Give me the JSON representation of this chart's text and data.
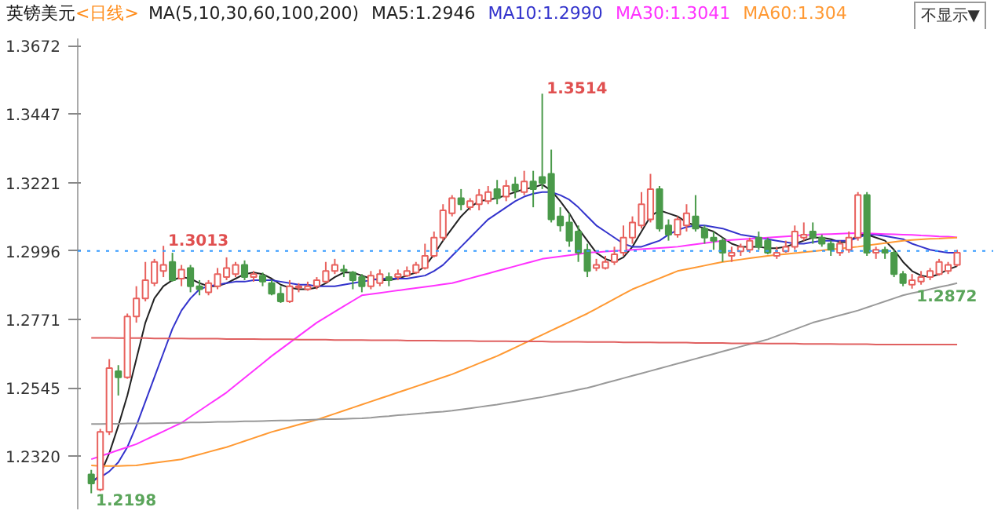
{
  "chart_data": {
    "type": "candlestick",
    "title": "英镑美元",
    "subtitle": "<日线>",
    "categories": [
      null,
      null,
      null,
      null,
      null,
      null,
      null,
      null,
      null,
      null,
      null,
      null,
      null,
      null,
      null,
      null,
      null,
      null,
      null,
      null,
      null,
      null,
      null,
      null,
      null,
      null,
      null,
      null,
      null,
      null,
      null,
      null,
      null,
      null,
      null,
      null,
      null,
      null,
      null,
      null,
      null,
      null,
      null,
      null,
      null,
      null,
      null,
      null,
      null,
      null,
      null,
      null,
      null,
      null,
      null,
      null,
      null,
      null,
      null,
      null,
      null,
      null,
      null,
      null,
      null,
      null,
      null,
      null,
      null,
      null,
      null,
      null,
      null,
      null,
      null,
      null,
      null,
      null,
      null,
      null,
      null,
      null,
      null,
      null,
      null,
      null,
      null,
      null,
      null,
      null,
      null,
      null,
      null,
      null,
      null,
      null,
      null
    ],
    "ohlc": [
      [
        1.226,
        1.2275,
        1.2198,
        1.223
      ],
      [
        1.221,
        1.241,
        1.2205,
        1.24
      ],
      [
        1.24,
        1.264,
        1.239,
        1.261
      ],
      [
        1.26,
        1.262,
        1.252,
        1.258
      ],
      [
        1.258,
        1.279,
        1.2575,
        1.278
      ],
      [
        1.278,
        1.288,
        1.276,
        1.284
      ],
      [
        1.284,
        1.296,
        1.283,
        1.29
      ],
      [
        1.289,
        1.297,
        1.288,
        1.296
      ],
      [
        1.293,
        1.3013,
        1.291,
        1.295
      ],
      [
        1.296,
        1.299,
        1.2895,
        1.29
      ],
      [
        1.2905,
        1.295,
        1.288,
        1.2935
      ],
      [
        1.294,
        1.295,
        1.286,
        1.288
      ],
      [
        1.288,
        1.29,
        1.285,
        1.287
      ],
      [
        1.286,
        1.29,
        1.285,
        1.289
      ],
      [
        1.288,
        1.294,
        1.287,
        1.292
      ],
      [
        1.291,
        1.2975,
        1.29,
        1.294
      ],
      [
        1.292,
        1.296,
        1.291,
        1.295
      ],
      [
        1.295,
        1.2965,
        1.29,
        1.291
      ],
      [
        1.291,
        1.293,
        1.2895,
        1.292
      ],
      [
        1.2915,
        1.2925,
        1.288,
        1.2895
      ],
      [
        1.289,
        1.29,
        1.285,
        1.2855
      ],
      [
        1.2855,
        1.288,
        1.2825,
        1.283
      ],
      [
        1.283,
        1.29,
        1.2825,
        1.288
      ],
      [
        1.2875,
        1.289,
        1.286,
        1.288
      ],
      [
        1.287,
        1.2895,
        1.2865,
        1.288
      ],
      [
        1.288,
        1.291,
        1.287,
        1.29
      ],
      [
        1.2895,
        1.296,
        1.289,
        1.293
      ],
      [
        1.293,
        1.297,
        1.292,
        1.295
      ],
      [
        1.2935,
        1.295,
        1.291,
        1.293
      ],
      [
        1.2925,
        1.293,
        1.287,
        1.29
      ],
      [
        1.291,
        1.292,
        1.286,
        1.288
      ],
      [
        1.288,
        1.293,
        1.287,
        1.2915
      ],
      [
        1.289,
        1.2935,
        1.288,
        1.292
      ],
      [
        1.291,
        1.2925,
        1.288,
        1.29
      ],
      [
        1.291,
        1.2935,
        1.29,
        1.292
      ],
      [
        1.2915,
        1.2945,
        1.291,
        1.293
      ],
      [
        1.2925,
        1.296,
        1.292,
        1.295
      ],
      [
        1.294,
        1.302,
        1.2935,
        1.298
      ],
      [
        1.298,
        1.306,
        1.2975,
        1.304
      ],
      [
        1.304,
        1.315,
        1.303,
        1.313
      ],
      [
        1.312,
        1.318,
        1.311,
        1.317
      ],
      [
        1.317,
        1.32,
        1.313,
        1.315
      ],
      [
        1.314,
        1.317,
        1.313,
        1.316
      ],
      [
        1.315,
        1.32,
        1.313,
        1.318
      ],
      [
        1.316,
        1.321,
        1.315,
        1.319
      ],
      [
        1.32,
        1.323,
        1.315,
        1.317
      ],
      [
        1.3175,
        1.323,
        1.316,
        1.321
      ],
      [
        1.3215,
        1.324,
        1.317,
        1.3195
      ],
      [
        1.319,
        1.326,
        1.318,
        1.3225
      ],
      [
        1.3225,
        1.326,
        1.314,
        1.32
      ],
      [
        1.324,
        1.3514,
        1.32,
        1.322
      ],
      [
        1.325,
        1.333,
        1.309,
        1.31
      ],
      [
        1.311,
        1.314,
        1.306,
        1.308
      ],
      [
        1.309,
        1.312,
        1.301,
        1.303
      ],
      [
        1.306,
        1.308,
        1.296,
        1.299
      ],
      [
        1.3,
        1.302,
        1.291,
        1.293
      ],
      [
        1.294,
        1.297,
        1.293,
        1.295
      ],
      [
        1.294,
        1.298,
        1.2935,
        1.296
      ],
      [
        1.296,
        1.301,
        1.295,
        1.2985
      ],
      [
        1.299,
        1.308,
        1.298,
        1.304
      ],
      [
        1.304,
        1.311,
        1.302,
        1.309
      ],
      [
        1.308,
        1.319,
        1.307,
        1.315
      ],
      [
        1.31,
        1.325,
        1.309,
        1.32
      ],
      [
        1.32,
        1.321,
        1.306,
        1.307
      ],
      [
        1.308,
        1.31,
        1.303,
        1.305
      ],
      [
        1.305,
        1.311,
        1.304,
        1.31
      ],
      [
        1.308,
        1.315,
        1.306,
        1.312
      ],
      [
        1.311,
        1.318,
        1.306,
        1.307
      ],
      [
        1.307,
        1.308,
        1.302,
        1.304
      ],
      [
        1.304,
        1.306,
        1.3,
        1.303
      ],
      [
        1.303,
        1.304,
        1.296,
        1.299
      ],
      [
        1.298,
        1.301,
        1.296,
        1.299
      ],
      [
        1.2995,
        1.302,
        1.298,
        1.301
      ],
      [
        1.3,
        1.304,
        1.299,
        1.303
      ],
      [
        1.304,
        1.306,
        1.3,
        1.301
      ],
      [
        1.303,
        1.304,
        1.2985,
        1.299
      ],
      [
        1.298,
        1.301,
        1.297,
        1.299
      ],
      [
        1.2995,
        1.303,
        1.299,
        1.301
      ],
      [
        1.301,
        1.308,
        1.3,
        1.306
      ],
      [
        1.304,
        1.309,
        1.303,
        1.305
      ],
      [
        1.306,
        1.309,
        1.302,
        1.304
      ],
      [
        1.304,
        1.305,
        1.301,
        1.302
      ],
      [
        1.302,
        1.303,
        1.298,
        1.3
      ],
      [
        1.299,
        1.303,
        1.298,
        1.302
      ],
      [
        1.3,
        1.306,
        1.299,
        1.304
      ],
      [
        1.304,
        1.319,
        1.303,
        1.318
      ],
      [
        1.318,
        1.319,
        1.298,
        1.299
      ],
      [
        1.299,
        1.301,
        1.297,
        1.3
      ],
      [
        1.3,
        1.301,
        1.297,
        1.299
      ],
      [
        1.299,
        1.3,
        1.291,
        1.292
      ],
      [
        1.292,
        1.293,
        1.288,
        1.289
      ],
      [
        1.2885,
        1.292,
        1.2872,
        1.29
      ],
      [
        1.2895,
        1.293,
        1.2885,
        1.291
      ],
      [
        1.291,
        1.294,
        1.29,
        1.293
      ],
      [
        1.292,
        1.297,
        1.2915,
        1.296
      ],
      [
        1.293,
        1.296,
        1.292,
        1.295
      ],
      [
        1.295,
        1.3,
        1.2945,
        1.299
      ]
    ],
    "colors": [
      "#4a9a4a",
      "#e8615d",
      "#e8615d",
      "#4a9a4a",
      "#e8615d",
      "#e8615d",
      "#e8615d",
      "#e8615d",
      "#e8615d",
      "#4a9a4a",
      "#e8615d",
      "#4a9a4a",
      "#4a9a4a",
      "#e8615d",
      "#e8615d",
      "#e8615d",
      "#e8615d",
      "#4a9a4a",
      "#e8615d",
      "#4a9a4a",
      "#4a9a4a",
      "#4a9a4a",
      "#e8615d",
      "#e8615d",
      "#e8615d",
      "#e8615d",
      "#e8615d",
      "#e8615d",
      "#4a9a4a",
      "#4a9a4a",
      "#4a9a4a",
      "#e8615d",
      "#e8615d",
      "#4a9a4a",
      "#e8615d",
      "#e8615d",
      "#e8615d",
      "#e8615d",
      "#e8615d",
      "#e8615d",
      "#e8615d",
      "#4a9a4a",
      "#e8615d",
      "#e8615d",
      "#e8615d",
      "#4a9a4a",
      "#e8615d",
      "#4a9a4a",
      "#e8615d",
      "#4a9a4a",
      "#4a9a4a",
      "#4a9a4a",
      "#4a9a4a",
      "#4a9a4a",
      "#4a9a4a",
      "#4a9a4a",
      "#e8615d",
      "#e8615d",
      "#e8615d",
      "#e8615d",
      "#e8615d",
      "#e8615d",
      "#e8615d",
      "#4a9a4a",
      "#4a9a4a",
      "#e8615d",
      "#e8615d",
      "#4a9a4a",
      "#4a9a4a",
      "#4a9a4a",
      "#4a9a4a",
      "#e8615d",
      "#e8615d",
      "#e8615d",
      "#4a9a4a",
      "#4a9a4a",
      "#e8615d",
      "#e8615d",
      "#e8615d",
      "#e8615d",
      "#4a9a4a",
      "#4a9a4a",
      "#4a9a4a",
      "#e8615d",
      "#e8615d",
      "#e8615d",
      "#4a9a4a",
      "#e8615d",
      "#4a9a4a",
      "#4a9a4a",
      "#4a9a4a",
      "#e8615d",
      "#e8615d",
      "#e8615d",
      "#e8615d",
      "#e8615d",
      "#e8615d"
    ],
    "series": [
      {
        "name": "MA5:1.2946",
        "type": "line",
        "color": "#222222",
        "values": [
          1.223,
          1.226,
          1.233,
          1.242,
          1.252,
          1.264,
          1.276,
          1.284,
          1.288,
          1.29,
          1.291,
          1.2905,
          1.289,
          1.288,
          1.288,
          1.289,
          1.2905,
          1.292,
          1.2925,
          1.292,
          1.2905,
          1.2885,
          1.2875,
          1.287,
          1.287,
          1.2875,
          1.289,
          1.291,
          1.2925,
          1.2925,
          1.2915,
          1.2905,
          1.29,
          1.29,
          1.2905,
          1.2915,
          1.2925,
          1.2945,
          1.2985,
          1.303,
          1.307,
          1.311,
          1.314,
          1.316,
          1.3165,
          1.317,
          1.318,
          1.319,
          1.32,
          1.3205,
          1.3215,
          1.3195,
          1.316,
          1.312,
          1.307,
          1.303,
          1.299,
          1.297,
          1.296,
          1.2975,
          1.301,
          1.306,
          1.311,
          1.313,
          1.312,
          1.311,
          1.309,
          1.308,
          1.307,
          1.306,
          1.304,
          1.302,
          1.301,
          1.301,
          1.301,
          1.3005,
          1.3005,
          1.301,
          1.302,
          1.303,
          1.304,
          1.304,
          1.3035,
          1.3025,
          1.3025,
          1.305,
          1.305,
          1.304,
          1.303,
          1.3,
          1.296,
          1.293,
          1.2915,
          1.291,
          1.292,
          1.2935,
          1.2946
        ]
      },
      {
        "name": "MA10:1.2990",
        "type": "line",
        "color": "#3333cc",
        "values": [
          1.224,
          1.225,
          1.227,
          1.23,
          1.235,
          1.242,
          1.25,
          1.258,
          1.266,
          1.274,
          1.28,
          1.284,
          1.287,
          1.288,
          1.2885,
          1.289,
          1.2895,
          1.2895,
          1.29,
          1.29,
          1.29,
          1.2895,
          1.289,
          1.2885,
          1.2885,
          1.288,
          1.288,
          1.288,
          1.2885,
          1.289,
          1.2895,
          1.29,
          1.2905,
          1.2905,
          1.2905,
          1.2905,
          1.291,
          1.2915,
          1.293,
          1.295,
          1.298,
          1.301,
          1.304,
          1.307,
          1.31,
          1.312,
          1.314,
          1.316,
          1.3175,
          1.3185,
          1.319,
          1.319,
          1.318,
          1.3165,
          1.314,
          1.311,
          1.308,
          1.306,
          1.304,
          1.302,
          1.301,
          1.301,
          1.302,
          1.303,
          1.305,
          1.3065,
          1.3075,
          1.308,
          1.308,
          1.3075,
          1.307,
          1.306,
          1.305,
          1.3045,
          1.304,
          1.3035,
          1.303,
          1.3025,
          1.302,
          1.302,
          1.3025,
          1.303,
          1.303,
          1.303,
          1.303,
          1.304,
          1.305,
          1.305,
          1.3045,
          1.304,
          1.3035,
          1.302,
          1.301,
          1.3,
          1.2995,
          1.299,
          1.299
        ]
      },
      {
        "name": "MA30:1.3041",
        "type": "line",
        "color": "#ff33ff",
        "values": [
          1.231,
          1.232,
          1.233,
          1.234,
          1.235,
          1.236,
          1.2374,
          1.2388,
          1.2402,
          1.2416,
          1.243,
          1.245,
          1.247,
          1.249,
          1.251,
          1.253,
          1.2554,
          1.2578,
          1.2602,
          1.2626,
          1.265,
          1.2672,
          1.2694,
          1.2716,
          1.2738,
          1.276,
          1.2778,
          1.2796,
          1.2814,
          1.2832,
          1.285,
          1.2854,
          1.2858,
          1.2862,
          1.2866,
          1.287,
          1.2874,
          1.2878,
          1.2882,
          1.2886,
          1.289,
          1.2898,
          1.2906,
          1.2914,
          1.2922,
          1.293,
          1.2938,
          1.2946,
          1.2954,
          1.2962,
          1.297,
          1.2974,
          1.2978,
          1.2982,
          1.2986,
          1.299,
          1.2992,
          1.2994,
          1.2996,
          1.2998,
          1.3,
          1.3002,
          1.3004,
          1.3006,
          1.3008,
          1.301,
          1.3014,
          1.3018,
          1.3022,
          1.3026,
          1.303,
          1.3032,
          1.3034,
          1.3036,
          1.3038,
          1.304,
          1.3042,
          1.3044,
          1.3046,
          1.3048,
          1.305,
          1.3051,
          1.3052,
          1.3053,
          1.3054,
          1.3055,
          1.3054,
          1.3053,
          1.3052,
          1.3051,
          1.305,
          1.3049,
          1.3047,
          1.3046,
          1.3044,
          1.3043,
          1.3041
        ]
      },
      {
        "name": "MA60:1.304",
        "type": "line",
        "color": "#ff9933",
        "values": [
          1.229,
          1.2288,
          1.2288,
          1.2288,
          1.2289,
          1.229,
          1.2294,
          1.2298,
          1.2302,
          1.2306,
          1.231,
          1.2318,
          1.2326,
          1.2334,
          1.2342,
          1.235,
          1.236,
          1.237,
          1.238,
          1.239,
          1.24,
          1.2408,
          1.2416,
          1.2424,
          1.2432,
          1.244,
          1.245,
          1.246,
          1.247,
          1.248,
          1.249,
          1.25,
          1.251,
          1.252,
          1.253,
          1.254,
          1.255,
          1.256,
          1.257,
          1.258,
          1.259,
          1.2602,
          1.2614,
          1.2626,
          1.2638,
          1.265,
          1.2664,
          1.2678,
          1.2692,
          1.2706,
          1.272,
          1.2734,
          1.2748,
          1.2762,
          1.2776,
          1.279,
          1.2806,
          1.2822,
          1.2838,
          1.2854,
          1.287,
          1.2882,
          1.2894,
          1.2906,
          1.2918,
          1.293,
          1.2936,
          1.2942,
          1.2948,
          1.2954,
          1.296,
          1.2964,
          1.2968,
          1.2972,
          1.2976,
          1.298,
          1.2983,
          1.2986,
          1.2989,
          1.2992,
          1.2995,
          1.2998,
          1.3001,
          1.3004,
          1.3007,
          1.301,
          1.3014,
          1.3018,
          1.3022,
          1.3026,
          1.303,
          1.3032,
          1.3034,
          1.3036,
          1.3037,
          1.3039,
          1.304
        ]
      },
      {
        "type": "line",
        "color": "#999999",
        "values": [
          1.2426,
          1.2426,
          1.2427,
          1.2427,
          1.2428,
          1.2428,
          1.2428,
          1.2429,
          1.2429,
          1.243,
          1.243,
          1.2431,
          1.2431,
          1.2432,
          1.2433,
          1.2433,
          1.2434,
          1.2435,
          1.2435,
          1.2436,
          1.2437,
          1.2438,
          1.2438,
          1.2439,
          1.244,
          1.2441,
          1.2442,
          1.2442,
          1.2443,
          1.2444,
          1.2445,
          1.2447,
          1.245,
          1.2452,
          1.2455,
          1.2457,
          1.246,
          1.2462,
          1.2465,
          1.2467,
          1.247,
          1.2474,
          1.2478,
          1.2482,
          1.2486,
          1.249,
          1.2495,
          1.25,
          1.2505,
          1.251,
          1.2515,
          1.2521,
          1.2527,
          1.2533,
          1.2539,
          1.2545,
          1.2553,
          1.2561,
          1.2569,
          1.2577,
          1.2585,
          1.2593,
          1.2601,
          1.2609,
          1.2617,
          1.2625,
          1.2633,
          1.2641,
          1.2649,
          1.2657,
          1.2665,
          1.2673,
          1.2681,
          1.2689,
          1.2697,
          1.2705,
          1.2716,
          1.2727,
          1.2738,
          1.2749,
          1.276,
          1.2768,
          1.2776,
          1.2784,
          1.2792,
          1.28,
          1.281,
          1.282,
          1.283,
          1.284,
          1.285,
          1.2857,
          1.2863,
          1.287,
          1.2877,
          1.2883,
          1.289
        ]
      },
      {
        "type": "line",
        "color": "#e06060",
        "values": [
          1.271,
          1.271,
          1.271,
          1.2709,
          1.2709,
          1.2709,
          1.2709,
          1.2708,
          1.2708,
          1.2708,
          1.2708,
          1.2707,
          1.2707,
          1.2707,
          1.2707,
          1.2706,
          1.2706,
          1.2706,
          1.2706,
          1.2705,
          1.2705,
          1.2705,
          1.2705,
          1.2704,
          1.2704,
          1.2704,
          1.2704,
          1.2703,
          1.2703,
          1.2703,
          1.2703,
          1.2702,
          1.2702,
          1.2702,
          1.2702,
          1.2701,
          1.2701,
          1.2701,
          1.2701,
          1.27,
          1.27,
          1.27,
          1.27,
          1.2699,
          1.2699,
          1.2699,
          1.2699,
          1.2698,
          1.2698,
          1.2698,
          1.2698,
          1.2697,
          1.2697,
          1.2697,
          1.2697,
          1.2696,
          1.2696,
          1.2696,
          1.2696,
          1.2695,
          1.2695,
          1.2695,
          1.2695,
          1.2694,
          1.2694,
          1.2694,
          1.2694,
          1.2693,
          1.2693,
          1.2693,
          1.2693,
          1.2692,
          1.2692,
          1.2692,
          1.2692,
          1.2691,
          1.2691,
          1.2691,
          1.2691,
          1.269,
          1.269,
          1.269,
          1.269,
          1.2689,
          1.2689,
          1.2689,
          1.2689,
          1.2688,
          1.2688,
          1.2688,
          1.2688,
          1.2688,
          1.2688,
          1.2688,
          1.2688,
          1.2688,
          1.2688
        ]
      }
    ],
    "ylim": [
      1.2145,
      1.3696
    ],
    "yticks": [
      {
        "value": 1.232,
        "label": "1.2320"
      },
      1.2545,
      1.2771,
      1.2996,
      1.3221,
      1.3447,
      1.3672
    ],
    "ref_lines": [
      {
        "axis": "y",
        "value": 1.2996,
        "color": "#3399ff",
        "line_style": "dotted"
      }
    ],
    "legend": "top",
    "annotations": [
      "MA(5,10,30,60,100,200)",
      "不显示▼",
      {
        "text": "1.3013",
        "y": 1.3013
      },
      "1.3514",
      "1.2198",
      {
        "text": "1.2872",
        "y": 1.2872
      }
    ]
  }
}
